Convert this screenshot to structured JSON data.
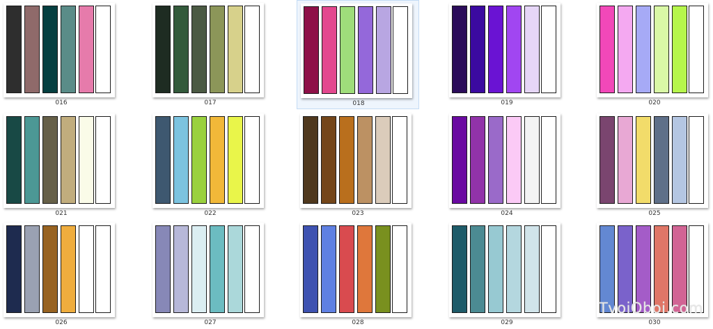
{
  "palettes": [
    {
      "label": "016",
      "selected": false,
      "colors": [
        "#2e2e2e",
        "#8f6a6a",
        "#053f40",
        "#5a8c88",
        "#e67bab",
        "#ffffff"
      ]
    },
    {
      "label": "017",
      "selected": false,
      "colors": [
        "#1e2c22",
        "#335a3b",
        "#4b5a43",
        "#8c9659",
        "#d7d18b",
        "#ffffff"
      ]
    },
    {
      "label": "018",
      "selected": true,
      "colors": [
        "#8e1048",
        "#e3488f",
        "#9fdd7b",
        "#9468da",
        "#b8a6e2",
        "#ffffff"
      ]
    },
    {
      "label": "019",
      "selected": false,
      "colors": [
        "#2b0c5a",
        "#3b0aa0",
        "#6a13d3",
        "#a146f1",
        "#e6d6f7",
        "#ffffff"
      ]
    },
    {
      "label": "020",
      "selected": false,
      "colors": [
        "#f248b9",
        "#f4a9f1",
        "#a6aaf6",
        "#d9f8a6",
        "#b6f64c",
        "#ffffff"
      ]
    },
    {
      "label": "021",
      "selected": false,
      "colors": [
        "#184945",
        "#4c9895",
        "#666048",
        "#c1ad7d",
        "#fafbe8",
        "#ffffff"
      ]
    },
    {
      "label": "022",
      "selected": false,
      "colors": [
        "#3e5870",
        "#7cc3df",
        "#9ad13e",
        "#f1b839",
        "#e9f54a",
        "#ffffff"
      ]
    },
    {
      "label": "023",
      "selected": false,
      "colors": [
        "#4f381d",
        "#74461a",
        "#b96f1d",
        "#bc9163",
        "#dbccbb",
        "#ffffff"
      ]
    },
    {
      "label": "024",
      "selected": false,
      "colors": [
        "#6a0aa1",
        "#9133a9",
        "#9a6ac9",
        "#fbcaf6",
        "#f3f3f3",
        "#ffffff"
      ]
    },
    {
      "label": "025",
      "selected": false,
      "colors": [
        "#7a456f",
        "#e8a8d4",
        "#f2dc6a",
        "#5f7089",
        "#b4c6e2",
        "#ffffff"
      ]
    },
    {
      "label": "026",
      "selected": false,
      "colors": [
        "#1e2b4f",
        "#9aa1b2",
        "#986321",
        "#efad3e",
        "#ffffff",
        "#ffffff"
      ]
    },
    {
      "label": "027",
      "selected": false,
      "colors": [
        "#8788b7",
        "#b7b8d8",
        "#dbeef2",
        "#6cbcc1",
        "#abd8da",
        "#ffffff"
      ]
    },
    {
      "label": "028",
      "selected": false,
      "colors": [
        "#3e52b1",
        "#5f80e2",
        "#d94b4f",
        "#df773b",
        "#79901f",
        "#ffffff"
      ]
    },
    {
      "label": "029",
      "selected": false,
      "colors": [
        "#1e5b69",
        "#4c8b93",
        "#97c9d2",
        "#b4d7df",
        "#d1e4ea",
        "#ffffff"
      ]
    },
    {
      "label": "030",
      "selected": false,
      "colors": [
        "#6388d2",
        "#7a62cb",
        "#a45cc8",
        "#df7667",
        "#d16494",
        "#ffffff"
      ]
    }
  ],
  "watermark": "TvoiOboi.com"
}
